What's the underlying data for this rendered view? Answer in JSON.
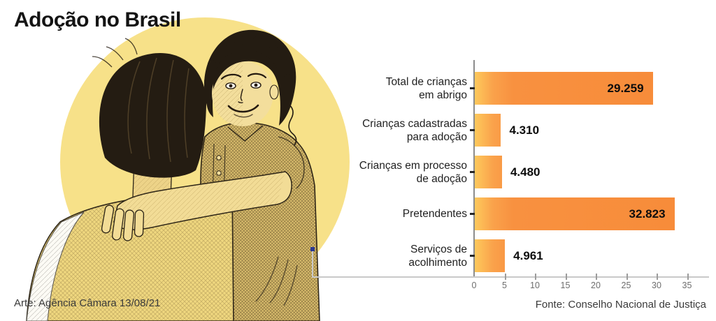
{
  "header": {
    "title": "Adoção no Brasil"
  },
  "footer": {
    "credit_art": "Arte: Agência Câmara 13/08/21",
    "credit_source": "Fonte: Conselho Nacional de Justiça"
  },
  "illustration": {
    "subject": "sketch of adult hugging smiling child",
    "bg_circle_color": "#F7E189"
  },
  "chart_data": {
    "type": "bar",
    "orientation": "horizontal",
    "categories": [
      "Total de crianças\nem abrigo",
      "Crianças cadastradas\npara adoção",
      "Crianças em processo\nde adoção",
      "Pretendentes",
      "Serviços de\nacolhimento"
    ],
    "values": [
      29259,
      4310,
      4480,
      32823,
      4961
    ],
    "value_labels": [
      "29.259",
      "4.310",
      "4.480",
      "32.823",
      "4.961"
    ],
    "x_tick_labels": [
      "0",
      "5",
      "10",
      "15",
      "20",
      "25",
      "30",
      "35"
    ],
    "x_tick_values": [
      0,
      5000,
      10000,
      15000,
      20000,
      25000,
      30000,
      35000
    ],
    "xlim": [
      0,
      35000
    ],
    "grid": false,
    "legend": false,
    "bar_color_start": "#FDC95C",
    "bar_color_end": "#F78C3A",
    "title": "",
    "xlabel": "",
    "ylabel": ""
  }
}
